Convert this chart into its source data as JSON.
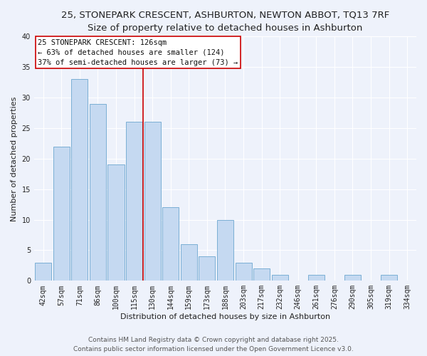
{
  "title_line1": "25, STONEPARK CRESCENT, ASHBURTON, NEWTON ABBOT, TQ13 7RF",
  "title_line2": "Size of property relative to detached houses in Ashburton",
  "xlabel": "Distribution of detached houses by size in Ashburton",
  "ylabel": "Number of detached properties",
  "bar_labels": [
    "42sqm",
    "57sqm",
    "71sqm",
    "86sqm",
    "100sqm",
    "115sqm",
    "130sqm",
    "144sqm",
    "159sqm",
    "173sqm",
    "188sqm",
    "203sqm",
    "217sqm",
    "232sqm",
    "246sqm",
    "261sqm",
    "276sqm",
    "290sqm",
    "305sqm",
    "319sqm",
    "334sqm"
  ],
  "bar_values": [
    3,
    22,
    33,
    29,
    19,
    26,
    26,
    12,
    6,
    4,
    10,
    3,
    2,
    1,
    0,
    1,
    0,
    1,
    0,
    1,
    0
  ],
  "bar_color": "#c5d9f1",
  "bar_edge_color": "#7bafd4",
  "vline_index": 6,
  "vline_color": "#cc0000",
  "ylim": [
    0,
    40
  ],
  "yticks": [
    0,
    5,
    10,
    15,
    20,
    25,
    30,
    35,
    40
  ],
  "annotation_title": "25 STONEPARK CRESCENT: 126sqm",
  "annotation_line1": "← 63% of detached houses are smaller (124)",
  "annotation_line2": "37% of semi-detached houses are larger (73) →",
  "annotation_box_facecolor": "#ffffff",
  "annotation_box_edgecolor": "#cc0000",
  "footer_line1": "Contains HM Land Registry data © Crown copyright and database right 2025.",
  "footer_line2": "Contains public sector information licensed under the Open Government Licence v3.0.",
  "background_color": "#eef2fb",
  "grid_color": "#ffffff",
  "title_fontsize": 9.5,
  "subtitle_fontsize": 8.5,
  "axis_label_fontsize": 8,
  "tick_fontsize": 7,
  "annotation_fontsize": 7.5,
  "footer_fontsize": 6.5
}
